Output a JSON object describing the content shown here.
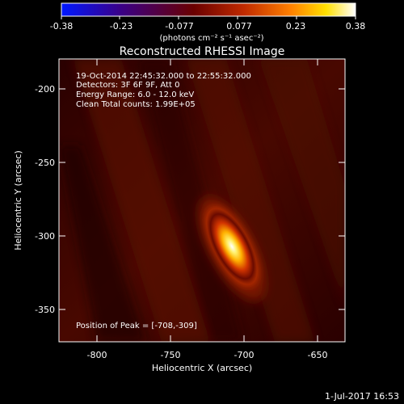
{
  "colorbar": {
    "ticks": [
      "-0.38",
      "-0.23",
      "-0.077",
      "0.077",
      "0.23",
      "0.38"
    ],
    "unit_label": "(photons cm⁻² s⁻¹ asec⁻²)"
  },
  "image": {
    "title": "Reconstructed RHESSI Image",
    "info_lines": [
      "19-Oct-2014 22:45:32.000 to 22:55:32.000",
      "Detectors: 3F 6F 9F, Att 0",
      "Energy Range: 6.0 - 12.0 keV",
      "Clean    Total counts: 1.99E+05"
    ],
    "peak_label": "Position of Peak = [-708,-309]"
  },
  "axes": {
    "xlabel": "Heliocentric X (arcsec)",
    "ylabel": "Heliocentric Y (arcsec)",
    "x_ticks": [
      "-800",
      "-750",
      "-700",
      "-650"
    ],
    "y_ticks": [
      "-200",
      "-250",
      "-300",
      "-350"
    ]
  },
  "footer": {
    "timestamp": "1-Jul-2017 16:53"
  },
  "colors": {
    "colormap": [
      "#0018ff",
      "#3a0088",
      "#5a0000",
      "#b32200",
      "#ff6a00",
      "#ffd400",
      "#ffffff"
    ],
    "background": "#000000",
    "foreground": "#ffffff"
  }
}
